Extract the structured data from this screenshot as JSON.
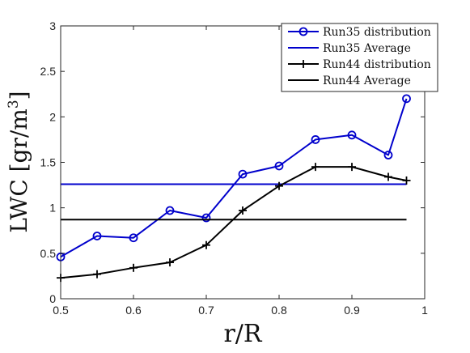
{
  "chart_data": {
    "type": "line",
    "xlabel": "r/R",
    "ylabel_main": "LWC [gr/m",
    "ylabel_sup": "3",
    "ylabel_close": "]",
    "xlim": [
      0.5,
      1
    ],
    "ylim": [
      0,
      3
    ],
    "xticks": [
      0.5,
      0.6,
      0.7,
      0.8,
      0.9,
      1
    ],
    "yticks": [
      0,
      0.5,
      1,
      1.5,
      2,
      2.5,
      3
    ],
    "legend_position": "top-right",
    "grid": false,
    "series": [
      {
        "name": "Run35 distribution",
        "color": "#0000cc",
        "marker": "circle",
        "x": [
          0.5,
          0.55,
          0.6,
          0.65,
          0.7,
          0.75,
          0.8,
          0.85,
          0.9,
          0.95,
          0.975
        ],
        "y": [
          0.46,
          0.69,
          0.67,
          0.97,
          0.89,
          1.37,
          1.46,
          1.75,
          1.8,
          1.58,
          2.2
        ]
      },
      {
        "name": "Run35 Average",
        "color": "#0000cc",
        "marker": "none",
        "x": [
          0.5,
          0.975
        ],
        "y": [
          1.26,
          1.26
        ]
      },
      {
        "name": "Run44 distribution",
        "color": "#000000",
        "marker": "plus",
        "x": [
          0.5,
          0.55,
          0.6,
          0.65,
          0.7,
          0.75,
          0.8,
          0.85,
          0.9,
          0.95,
          0.975
        ],
        "y": [
          0.23,
          0.27,
          0.34,
          0.4,
          0.59,
          0.97,
          1.24,
          1.45,
          1.45,
          1.34,
          1.3
        ]
      },
      {
        "name": "Run44 Average",
        "color": "#000000",
        "marker": "none",
        "x": [
          0.5,
          0.975
        ],
        "y": [
          0.87,
          0.87
        ]
      }
    ]
  }
}
